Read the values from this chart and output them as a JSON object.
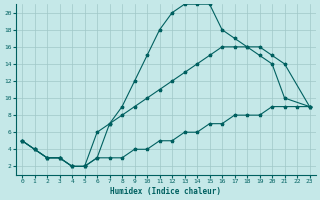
{
  "xlabel": "Humidex (Indice chaleur)",
  "bg_color": "#c5e8e8",
  "grid_color": "#a0c8c8",
  "line_color": "#006060",
  "xlim": [
    -0.5,
    23.5
  ],
  "ylim": [
    1,
    21
  ],
  "xticks": [
    0,
    1,
    2,
    3,
    4,
    5,
    6,
    7,
    8,
    9,
    10,
    11,
    12,
    13,
    14,
    15,
    16,
    17,
    18,
    19,
    20,
    21,
    22,
    23
  ],
  "yticks": [
    2,
    4,
    6,
    8,
    10,
    12,
    14,
    16,
    18,
    20
  ],
  "curve1_x": [
    0,
    1,
    2,
    3,
    4,
    5,
    6,
    7,
    8,
    9,
    10,
    11,
    12,
    13,
    14,
    15,
    16,
    17,
    18,
    19,
    20,
    21,
    23
  ],
  "curve1_y": [
    5,
    4,
    3,
    3,
    2,
    2,
    3,
    7,
    9,
    12,
    15,
    18,
    20,
    21,
    21,
    21,
    18,
    17,
    16,
    15,
    14,
    10,
    9
  ],
  "curve2_x": [
    0,
    1,
    2,
    3,
    4,
    5,
    6,
    7,
    8,
    9,
    10,
    11,
    12,
    13,
    14,
    15,
    16,
    17,
    18,
    19,
    20,
    21,
    23
  ],
  "curve2_y": [
    5,
    4,
    3,
    3,
    2,
    2,
    6,
    7,
    8,
    9,
    10,
    11,
    12,
    13,
    14,
    15,
    16,
    16,
    16,
    16,
    15,
    14,
    9
  ],
  "curve3_x": [
    0,
    1,
    2,
    3,
    4,
    5,
    6,
    7,
    8,
    9,
    10,
    11,
    12,
    13,
    14,
    15,
    16,
    17,
    18,
    19,
    20,
    21,
    22,
    23
  ],
  "curve3_y": [
    5,
    4,
    3,
    3,
    2,
    2,
    3,
    3,
    3,
    4,
    4,
    5,
    5,
    6,
    6,
    7,
    7,
    8,
    8,
    8,
    9,
    9,
    9,
    9
  ]
}
